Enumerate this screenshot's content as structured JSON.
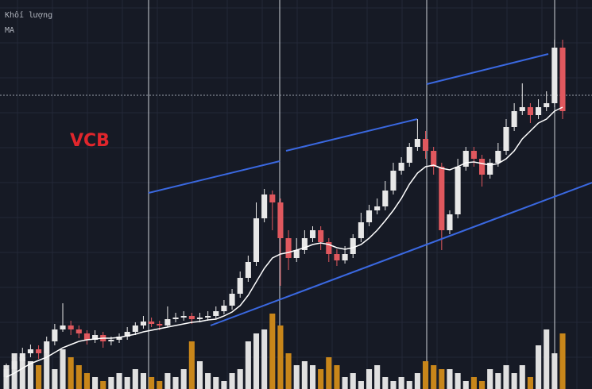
{
  "chart_data": {
    "type": "candlestick",
    "legend_labels": [
      "Khối lượng",
      "MA"
    ],
    "annotation": "VCB",
    "annotation_color": "#e0262c",
    "up_color": "#e8e8e8",
    "down_color": "#e0585e",
    "ylim": [
      0,
      490
    ],
    "candles": [
      [
        15,
        32,
        8,
        25
      ],
      [
        25,
        40,
        20,
        35
      ],
      [
        35,
        52,
        30,
        45
      ],
      [
        45,
        56,
        40,
        50
      ],
      [
        50,
        55,
        38,
        45
      ],
      [
        45,
        66,
        42,
        60
      ],
      [
        60,
        82,
        55,
        75
      ],
      [
        75,
        108,
        72,
        80
      ],
      [
        80,
        86,
        68,
        75
      ],
      [
        75,
        80,
        64,
        70
      ],
      [
        70,
        74,
        56,
        62
      ],
      [
        62,
        74,
        58,
        68
      ],
      [
        68,
        72,
        52,
        60
      ],
      [
        60,
        66,
        55,
        62
      ],
      [
        62,
        70,
        58,
        66
      ],
      [
        66,
        78,
        62,
        72
      ],
      [
        72,
        84,
        68,
        80
      ],
      [
        80,
        92,
        76,
        85
      ],
      [
        85,
        90,
        78,
        82
      ],
      [
        82,
        86,
        74,
        80
      ],
      [
        80,
        104,
        78,
        88
      ],
      [
        88,
        96,
        84,
        90
      ],
      [
        90,
        98,
        86,
        92
      ],
      [
        92,
        96,
        82,
        88
      ],
      [
        88,
        96,
        84,
        90
      ],
      [
        90,
        98,
        86,
        92
      ],
      [
        92,
        104,
        88,
        98
      ],
      [
        98,
        112,
        94,
        105
      ],
      [
        105,
        126,
        100,
        120
      ],
      [
        120,
        148,
        115,
        140
      ],
      [
        140,
        168,
        135,
        160
      ],
      [
        160,
        235,
        155,
        215
      ],
      [
        215,
        252,
        210,
        245
      ],
      [
        245,
        250,
        200,
        235
      ],
      [
        235,
        240,
        130,
        190
      ],
      [
        190,
        200,
        150,
        165
      ],
      [
        165,
        190,
        160,
        175
      ],
      [
        175,
        200,
        170,
        190
      ],
      [
        190,
        205,
        185,
        200
      ],
      [
        200,
        205,
        175,
        185
      ],
      [
        185,
        190,
        160,
        170
      ],
      [
        170,
        176,
        155,
        162
      ],
      [
        162,
        180,
        158,
        170
      ],
      [
        170,
        195,
        165,
        190
      ],
      [
        190,
        222,
        185,
        210
      ],
      [
        210,
        232,
        205,
        225
      ],
      [
        225,
        240,
        220,
        230
      ],
      [
        230,
        262,
        225,
        250
      ],
      [
        250,
        285,
        245,
        275
      ],
      [
        275,
        292,
        270,
        285
      ],
      [
        285,
        310,
        280,
        305
      ],
      [
        305,
        340,
        300,
        315
      ],
      [
        315,
        325,
        290,
        300
      ],
      [
        300,
        305,
        270,
        280
      ],
      [
        280,
        285,
        175,
        200
      ],
      [
        200,
        225,
        195,
        220
      ],
      [
        220,
        290,
        215,
        280
      ],
      [
        280,
        305,
        275,
        300
      ],
      [
        300,
        305,
        280,
        290
      ],
      [
        290,
        295,
        255,
        270
      ],
      [
        270,
        290,
        265,
        285
      ],
      [
        285,
        310,
        280,
        300
      ],
      [
        300,
        340,
        295,
        330
      ],
      [
        330,
        360,
        325,
        350
      ],
      [
        350,
        385,
        345,
        355
      ],
      [
        355,
        360,
        335,
        345
      ],
      [
        345,
        365,
        340,
        355
      ],
      [
        355,
        375,
        350,
        360
      ],
      [
        360,
        440,
        355,
        430
      ],
      [
        430,
        440,
        340,
        350
      ]
    ],
    "volume": {
      "axis": "y2",
      "up_color": "#e0e0e0",
      "down_color": "#c8861a",
      "values": [
        30,
        45,
        40,
        35,
        30,
        45,
        25,
        50,
        40,
        30,
        20,
        15,
        10,
        15,
        20,
        15,
        25,
        20,
        15,
        10,
        20,
        15,
        25,
        60,
        35,
        20,
        15,
        10,
        20,
        25,
        60,
        70,
        75,
        95,
        80,
        45,
        30,
        35,
        30,
        25,
        40,
        30,
        15,
        20,
        10,
        25,
        30,
        15,
        10,
        15,
        10,
        20,
        35,
        30,
        25,
        25,
        20,
        10,
        15,
        10,
        25,
        20,
        30,
        20,
        30,
        15,
        55,
        75,
        45,
        70
      ]
    },
    "y2lim": [
      0,
      490
    ],
    "ma": {
      "color": "#ffffff",
      "values": [
        15,
        20,
        26,
        32,
        36,
        40,
        46,
        52,
        56,
        60,
        62,
        63,
        64,
        64,
        65,
        67,
        69,
        72,
        74,
        76,
        78,
        80,
        82,
        84,
        85,
        87,
        88,
        92,
        97,
        105,
        118,
        135,
        152,
        165,
        170,
        172,
        175,
        178,
        182,
        184,
        182,
        178,
        176,
        178,
        182,
        190,
        200,
        212,
        225,
        240,
        258,
        272,
        280,
        282,
        278,
        276,
        280,
        285,
        286,
        284,
        282,
        284,
        290,
        300,
        315,
        325,
        335,
        340,
        350,
        355
      ]
    }
  }
}
